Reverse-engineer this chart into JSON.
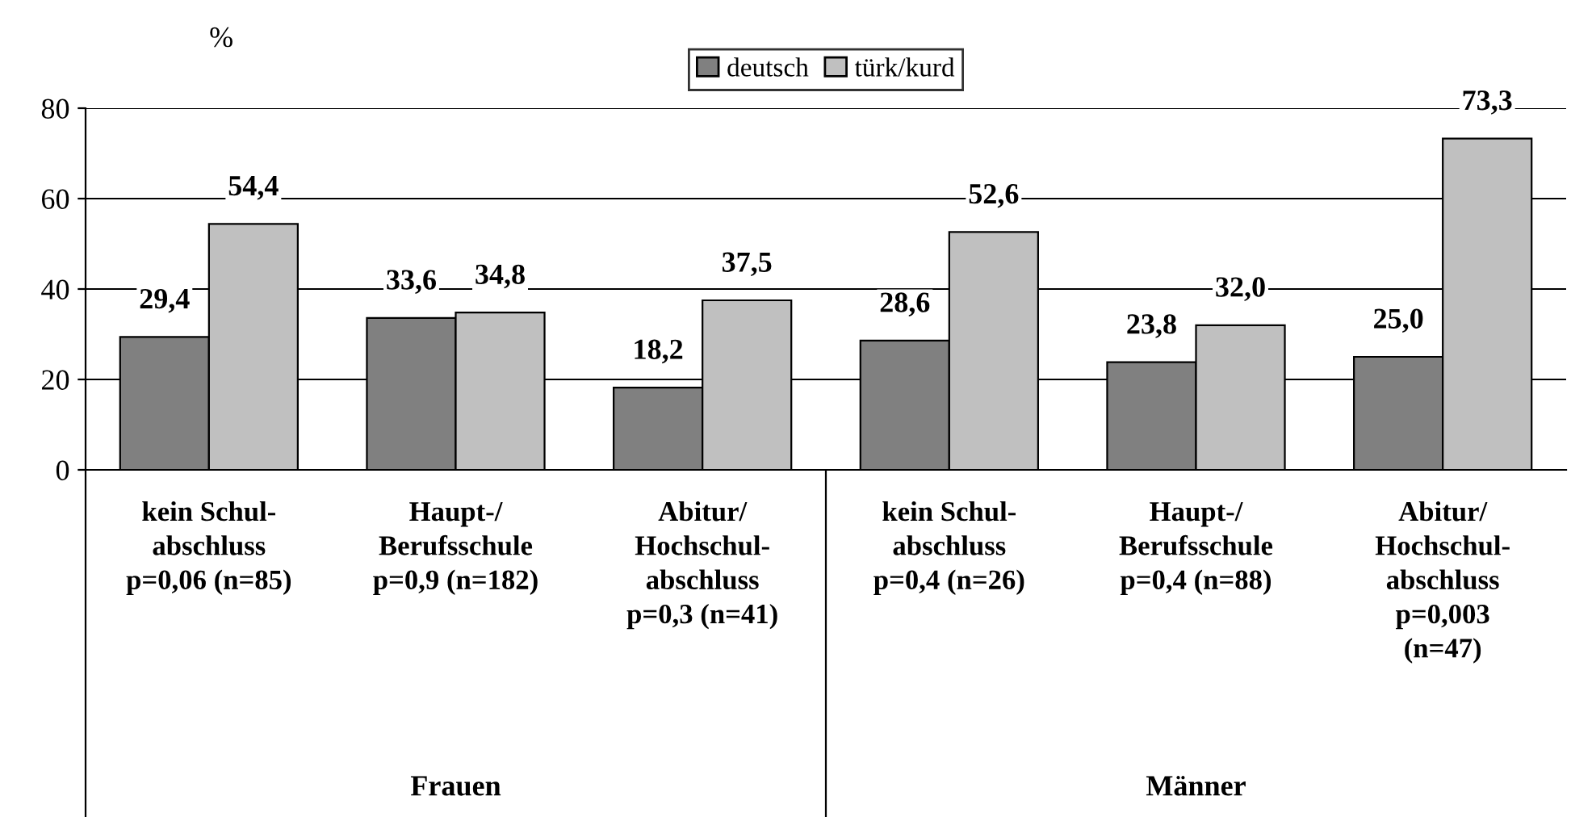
{
  "chart_data": {
    "type": "bar",
    "ylabel": "%",
    "categories": [
      "kein Schul-\nabschluss\np=0,06 (n=85)",
      "Haupt-/\nBerufsschule\np=0,9 (n=182)",
      "Abitur/\nHochschul-\nabschluss\np=0,3 (n=41)",
      "kein Schul-\nabschluss\np=0,4 (n=26)",
      "Haupt-/\nBerufsschule\np=0,4 (n=88)",
      "Abitur/\nHochschul-\nabschluss\np=0,003\n(n=47)"
    ],
    "series": [
      {
        "name": "deutsch",
        "color": "#808080",
        "values": [
          29.4,
          33.6,
          18.2,
          28.6,
          23.8,
          25.0
        ],
        "value_labels": [
          "29,4",
          "33,6",
          "18,2",
          "28,6",
          "23,8",
          "25,0"
        ]
      },
      {
        "name": "türk/kurd",
        "color": "#c0c0c0",
        "values": [
          54.4,
          34.8,
          37.5,
          52.6,
          32.0,
          73.3
        ],
        "value_labels": [
          "54,4",
          "34,8",
          "37,5",
          "52,6",
          "32,0",
          "73,3"
        ]
      }
    ],
    "ylim": [
      0,
      80
    ],
    "yticks": [
      0,
      20,
      40,
      60,
      80
    ],
    "grid": "y",
    "legend": "top",
    "annotations": [
      "Frauen",
      "Männer"
    ]
  }
}
